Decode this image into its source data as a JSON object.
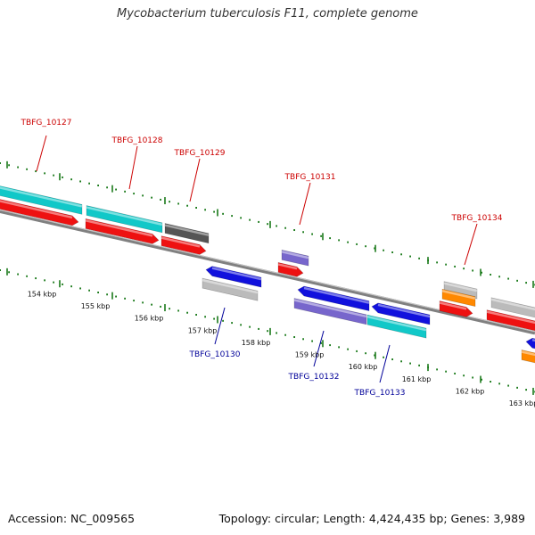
{
  "title": "Mycobacterium tuberculosis F11, complete genome",
  "footer": {
    "accession": "Accession: NC_009565",
    "topology": "Topology: circular; Length: 4,424,435 bp; Genes: 3,989"
  },
  "colors": {
    "backbone": "#808080",
    "tick": "#1a7a1a",
    "label_forward": "#cc0000",
    "label_reverse": "#000099",
    "cyan": "#11c8c8",
    "red": "#ee1111",
    "gray_dark": "#555555",
    "purple": "#7766cc",
    "blue": "#1111dd",
    "orange": "#ff8800",
    "gray_light": "#bbbbbb"
  },
  "ticks": [
    {
      "label": "154 kbp"
    },
    {
      "label": "155 kbp"
    },
    {
      "label": "156 kbp"
    },
    {
      "label": "157 kbp"
    },
    {
      "label": "158 kbp"
    },
    {
      "label": "159 kbp"
    },
    {
      "label": "160 kbp"
    },
    {
      "label": "161 kbp"
    },
    {
      "label": "162 kbp"
    },
    {
      "label": "163 kbp"
    }
  ],
  "gene_labels": {
    "TBFG_10127": "TBFG_10127",
    "TBFG_10128": "TBFG_10128",
    "TBFG_10129": "TBFG_10129",
    "TBFG_10131": "TBFG_10131",
    "TBFG_10134": "TBFG_10134",
    "TBFG_10130": "TBFG_10130",
    "TBFG_10132": "TBFG_10132",
    "TBFG_10133": "TBFG_10133"
  }
}
